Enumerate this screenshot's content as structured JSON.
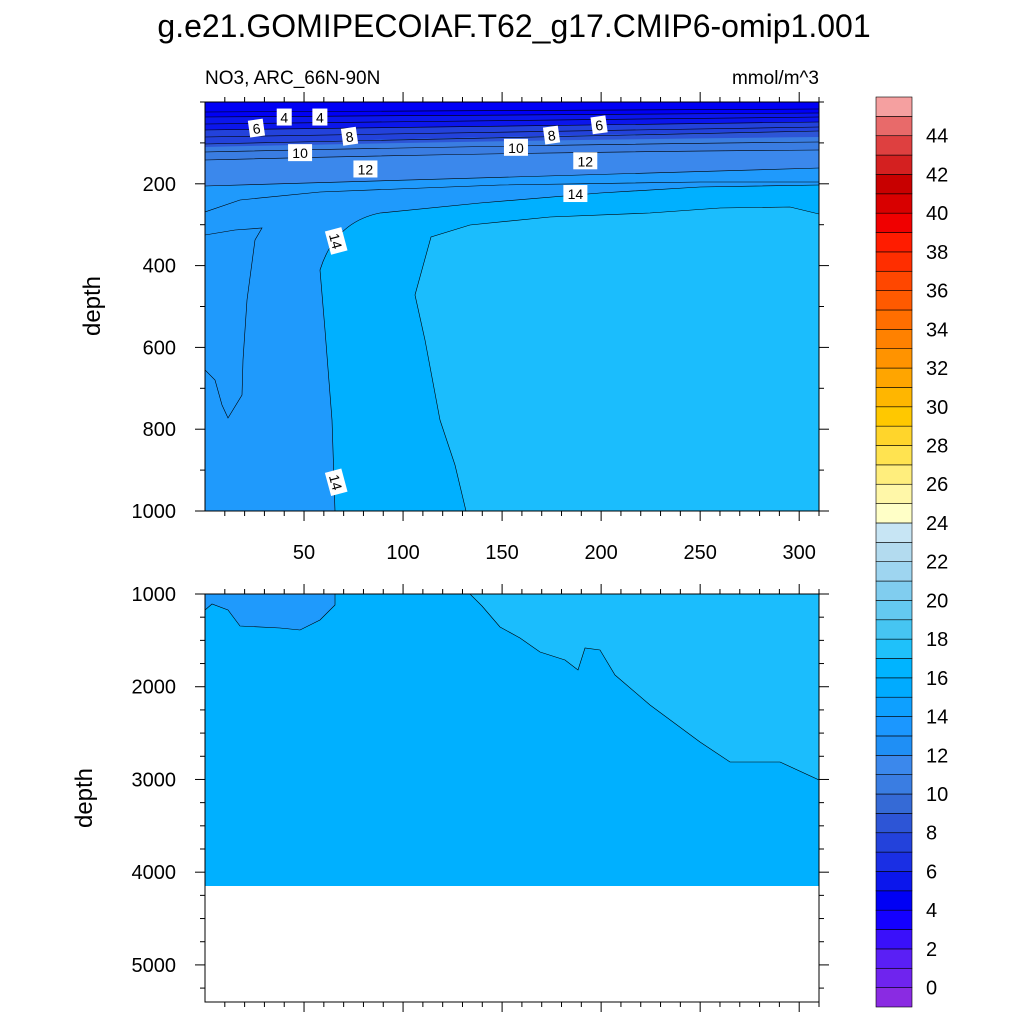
{
  "title": "g.e21.GOMIPECOIAF.T62_g17.CMIP6-omip1.001",
  "left_subtitle": "NO3, ARC_66N-90N",
  "right_subtitle": "mmol/m^3",
  "chart_data": {
    "type": "contour",
    "variable": "NO3",
    "region": "ARC_66N-90N",
    "units": "mmol/m^3",
    "x_range": [
      0,
      310
    ],
    "x_ticks": [
      50,
      100,
      150,
      200,
      250,
      300
    ],
    "panels": [
      {
        "name": "upper",
        "ylabel": "depth",
        "ylim": [
          0,
          1000
        ],
        "y_ticks": [
          200,
          400,
          600,
          800,
          1000
        ],
        "contour_labels": [
          {
            "value": 4,
            "x": 40,
            "depth": 38
          },
          {
            "value": 4,
            "x": 58,
            "depth": 38
          },
          {
            "value": 6,
            "x": 26,
            "depth": 65
          },
          {
            "value": 6,
            "x": 199,
            "depth": 57
          },
          {
            "value": 8,
            "x": 73,
            "depth": 85
          },
          {
            "value": 8,
            "x": 175,
            "depth": 82
          },
          {
            "value": 10,
            "x": 48,
            "depth": 125
          },
          {
            "value": 10,
            "x": 157,
            "depth": 112
          },
          {
            "value": 12,
            "x": 81,
            "depth": 165
          },
          {
            "value": 12,
            "x": 192,
            "depth": 145
          },
          {
            "value": 14,
            "x": 187,
            "depth": 225
          },
          {
            "value": 14,
            "x": 66,
            "depth": 340
          },
          {
            "value": 14,
            "x": 66,
            "depth": 930
          }
        ]
      },
      {
        "name": "lower",
        "ylabel": "depth",
        "ylim": [
          1000,
          5400
        ],
        "y_ticks": [
          1000,
          2000,
          3000,
          4000,
          5000
        ],
        "bottom_depth": 4100
      }
    ],
    "colorbar": {
      "levels": [
        0,
        2,
        4,
        6,
        8,
        10,
        12,
        14,
        16,
        18,
        20,
        22,
        24,
        26,
        28,
        30,
        32,
        34,
        36,
        38,
        40,
        42,
        44
      ],
      "level_step": 1,
      "colors": [
        "#8A2BE2",
        "#6F24EE",
        "#5A1FF5",
        "#3A10FA",
        "#1400FF",
        "#0000F5",
        "#0B16EC",
        "#1A2FE4",
        "#2342DB",
        "#2D55D6",
        "#356AD6",
        "#3A7DE2",
        "#3B88EC",
        "#1F8FF5",
        "#1B97FF",
        "#0EA0FF",
        "#00ABFF",
        "#00B4FF",
        "#1FC1FA",
        "#46C5F2",
        "#64C9F0",
        "#80CDEF",
        "#9ED5F0",
        "#B3DBEF",
        "#C7E5F4",
        "#FFFFC7",
        "#FFF7A8",
        "#FFEE7D",
        "#FFE350",
        "#FFD52B",
        "#FFC800",
        "#FFB600",
        "#FFA500",
        "#FF9300",
        "#FF8100",
        "#FF6E00",
        "#FF5A00",
        "#FF4700",
        "#FF2E00",
        "#FF1C00",
        "#F00000",
        "#D80000",
        "#C80000",
        "#D42020",
        "#DE4040",
        "#E86A6A",
        "#F5A0A0"
      ]
    }
  }
}
